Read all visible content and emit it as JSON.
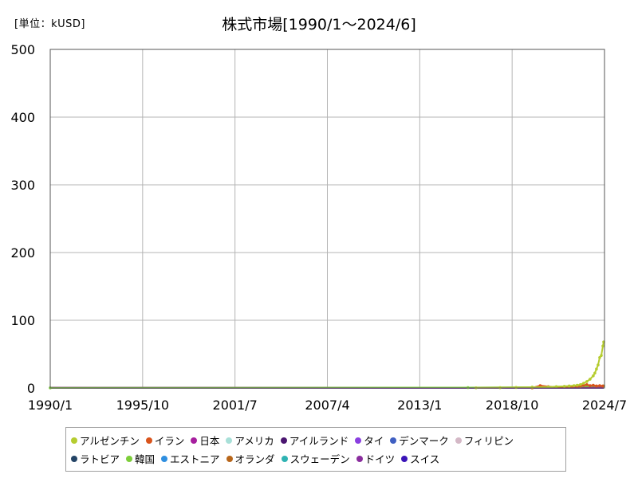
{
  "chart_data": {
    "type": "line",
    "title": "株式市場[1990/1～2024/6]",
    "unit_label": "[単位：kUSD]",
    "ylim": [
      0,
      500
    ],
    "y_ticks": [
      "0",
      "100",
      "200",
      "300",
      "400",
      "500"
    ],
    "x_ticks": [
      "1990/1",
      "1995/10",
      "2001/7",
      "2007/4",
      "2013/1",
      "2018/10",
      "2024/7"
    ],
    "x_tick_dates": [
      1990.0,
      1995.75,
      2001.5,
      2007.25,
      2013.0,
      2018.75,
      2024.5
    ],
    "xlim": [
      1990.0,
      2024.5
    ],
    "grid": true,
    "legend_position": "bottom",
    "series": [
      {
        "name": "アルゼンチン",
        "color": "#b5cc2f",
        "x": [
          2016.5,
          2018.0,
          2019.0,
          2020.0,
          2021.0,
          2021.5,
          2022.0,
          2022.3,
          2022.6,
          2022.8,
          2023.0,
          2023.2,
          2023.4,
          2023.6,
          2023.8,
          2023.9,
          2024.0,
          2024.1,
          2024.2,
          2024.3,
          2024.4,
          2024.45
        ],
        "y": [
          0.3,
          0.5,
          0.8,
          1.0,
          1.5,
          2.0,
          2.5,
          3.0,
          3.5,
          4.0,
          5.0,
          7.0,
          9.5,
          13.0,
          18.0,
          22.0,
          28.0,
          34.0,
          45.0,
          48.0,
          62.0,
          68.0
        ]
      },
      {
        "name": "イラン",
        "color": "#d9541c",
        "x": [
          2020.0,
          2020.5,
          2021.0,
          2021.5,
          2022.0,
          2022.5,
          2022.8,
          2023.0,
          2023.2,
          2023.4,
          2023.6,
          2023.8,
          2024.0,
          2024.2,
          2024.4
        ],
        "y": [
          0.2,
          3.5,
          2.0,
          1.5,
          1.8,
          2.0,
          2.5,
          3.0,
          4.0,
          5.0,
          3.5,
          4.0,
          3.0,
          3.5,
          3.0
        ]
      },
      {
        "name": "日本",
        "color": "#a61e9e",
        "x": [
          1990.0,
          2024.45
        ],
        "y": [
          0.4,
          0.4
        ]
      },
      {
        "name": "アメリカ",
        "color": "#a8e0d8",
        "x": [
          1990.0,
          2024.45
        ],
        "y": [
          0.2,
          0.2
        ]
      },
      {
        "name": "アイルランド",
        "color": "#4a1570",
        "x": [
          1990.0,
          2024.45
        ],
        "y": [
          0.2,
          0.2
        ]
      },
      {
        "name": "タイ",
        "color": "#8a3fe0",
        "x": [
          1990.0,
          2024.45
        ],
        "y": [
          0.2,
          0.2
        ]
      },
      {
        "name": "デンマーク",
        "color": "#3f5fc2",
        "x": [
          1990.0,
          2024.45
        ],
        "y": [
          0.2,
          0.2
        ]
      },
      {
        "name": "フィリピン",
        "color": "#d4b8c6",
        "x": [
          1990.0,
          2024.45
        ],
        "y": [
          0.2,
          0.2
        ]
      },
      {
        "name": "ラトビア",
        "color": "#244466",
        "x": [
          1990.0,
          2024.45
        ],
        "y": [
          0.2,
          0.2
        ]
      },
      {
        "name": "韓国",
        "color": "#7dce3a",
        "x": [
          1990.0,
          2016.0,
          2020.0,
          2022.0,
          2023.0,
          2024.45
        ],
        "y": [
          0.2,
          0.6,
          1.2,
          2.0,
          2.5,
          3.0
        ]
      },
      {
        "name": "エストニア",
        "color": "#2f8fe0",
        "x": [
          1990.0,
          2024.45
        ],
        "y": [
          0.2,
          0.2
        ]
      },
      {
        "name": "オランダ",
        "color": "#b8661a",
        "x": [
          1990.0,
          2024.45
        ],
        "y": [
          0.2,
          0.2
        ]
      },
      {
        "name": "スウェーデン",
        "color": "#2fb3b3",
        "x": [
          1990.0,
          2024.45
        ],
        "y": [
          0.2,
          0.2
        ]
      },
      {
        "name": "ドイツ",
        "color": "#8a2d9e",
        "x": [
          1990.0,
          2024.45
        ],
        "y": [
          0.3,
          0.3
        ]
      },
      {
        "name": "スイス",
        "color": "#3a14b8",
        "x": [
          1990.0,
          2024.45
        ],
        "y": [
          0.2,
          0.2
        ]
      }
    ]
  }
}
